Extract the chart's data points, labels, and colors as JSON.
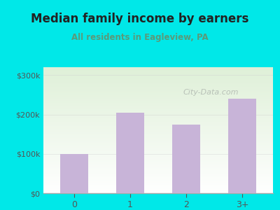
{
  "categories": [
    "0",
    "1",
    "2",
    "3+"
  ],
  "values": [
    100000,
    205000,
    175000,
    240000
  ],
  "bar_color": "#c8b4d8",
  "title": "Median family income by earners",
  "subtitle": "All residents in Eagleview, PA",
  "title_color": "#222222",
  "subtitle_color": "#5a9a7a",
  "outer_bg_color": "#00e8e8",
  "plot_bg_top_color": "#dff0d8",
  "plot_bg_bottom_color": "#ffffff",
  "yticks": [
    0,
    100000,
    200000,
    300000
  ],
  "ytick_labels": [
    "$0",
    "$100k",
    "$200k",
    "$300k"
  ],
  "ylim": [
    0,
    320000
  ],
  "watermark_text": "City-Data.com",
  "watermark_color": "#b0b8b0",
  "axis_color": "#aaaaaa",
  "tick_color": "#555555",
  "tick_line_color": "#aaaaaa"
}
